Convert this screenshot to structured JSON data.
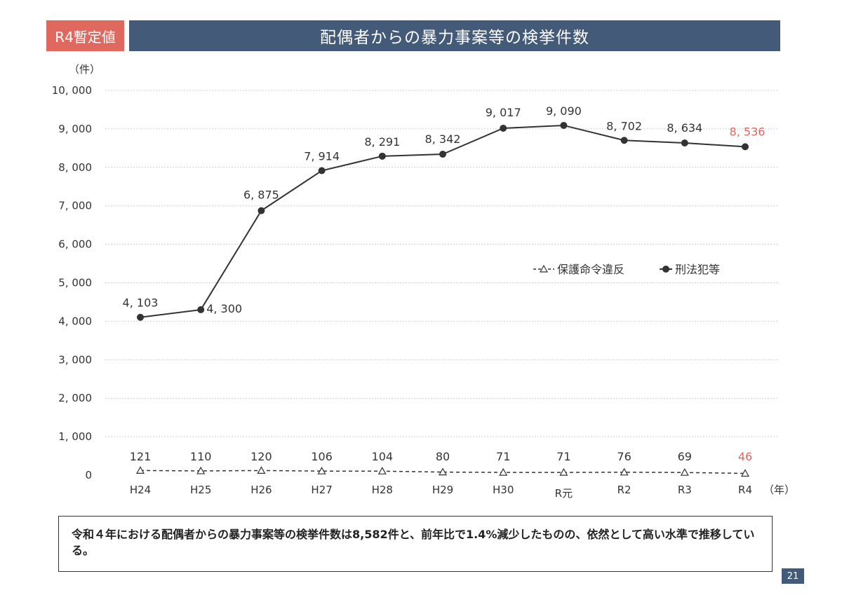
{
  "header": {
    "badge": "R4暫定値",
    "title": "配偶者からの暴力事案等の検挙件数"
  },
  "colors": {
    "badge": "#e0695f",
    "title_bar": "#435a78",
    "latest_label": "#e0695f",
    "line": "#333333"
  },
  "chart_data": {
    "type": "line",
    "y_unit_label": "（件）",
    "x_unit_label": "（年）",
    "categories": [
      "H24",
      "H25",
      "H26",
      "H27",
      "H28",
      "H29",
      "H30",
      "R元",
      "R2",
      "R3",
      "R4"
    ],
    "ylim": [
      0,
      10000
    ],
    "yticks": [
      0,
      1000,
      2000,
      3000,
      4000,
      5000,
      6000,
      7000,
      8000,
      9000,
      10000
    ],
    "ytick_labels": [
      "0",
      "1, 000",
      "2, 000",
      "3, 000",
      "4, 000",
      "5, 000",
      "6, 000",
      "7, 000",
      "8, 000",
      "9, 000",
      "10, 000"
    ],
    "grid": true,
    "legend_position": "right-center",
    "series": [
      {
        "name": "保護命令違反",
        "marker": "triangle-open",
        "line_style": "dashed",
        "values": [
          121,
          110,
          120,
          106,
          104,
          80,
          71,
          71,
          76,
          69,
          46
        ],
        "labels": [
          "121",
          "110",
          "120",
          "106",
          "104",
          "80",
          "71",
          "71",
          "76",
          "69",
          "46"
        ]
      },
      {
        "name": "刑法犯等",
        "marker": "circle-filled",
        "line_style": "solid",
        "values": [
          4103,
          4300,
          6875,
          7914,
          8291,
          8342,
          9017,
          9090,
          8702,
          8634,
          8536
        ],
        "labels": [
          "4, 103",
          "4, 300",
          "6, 875",
          "7, 914",
          "8, 291",
          "8, 342",
          "9, 017",
          "9, 090",
          "8, 702",
          "8, 634",
          "8, 536"
        ]
      }
    ]
  },
  "note": {
    "text": "令和４年における配偶者からの暴力事案等の検挙件数は8,582件と、前年比で1.4%減少したものの、依然として高い水準で推移している。"
  },
  "page_number": "21"
}
